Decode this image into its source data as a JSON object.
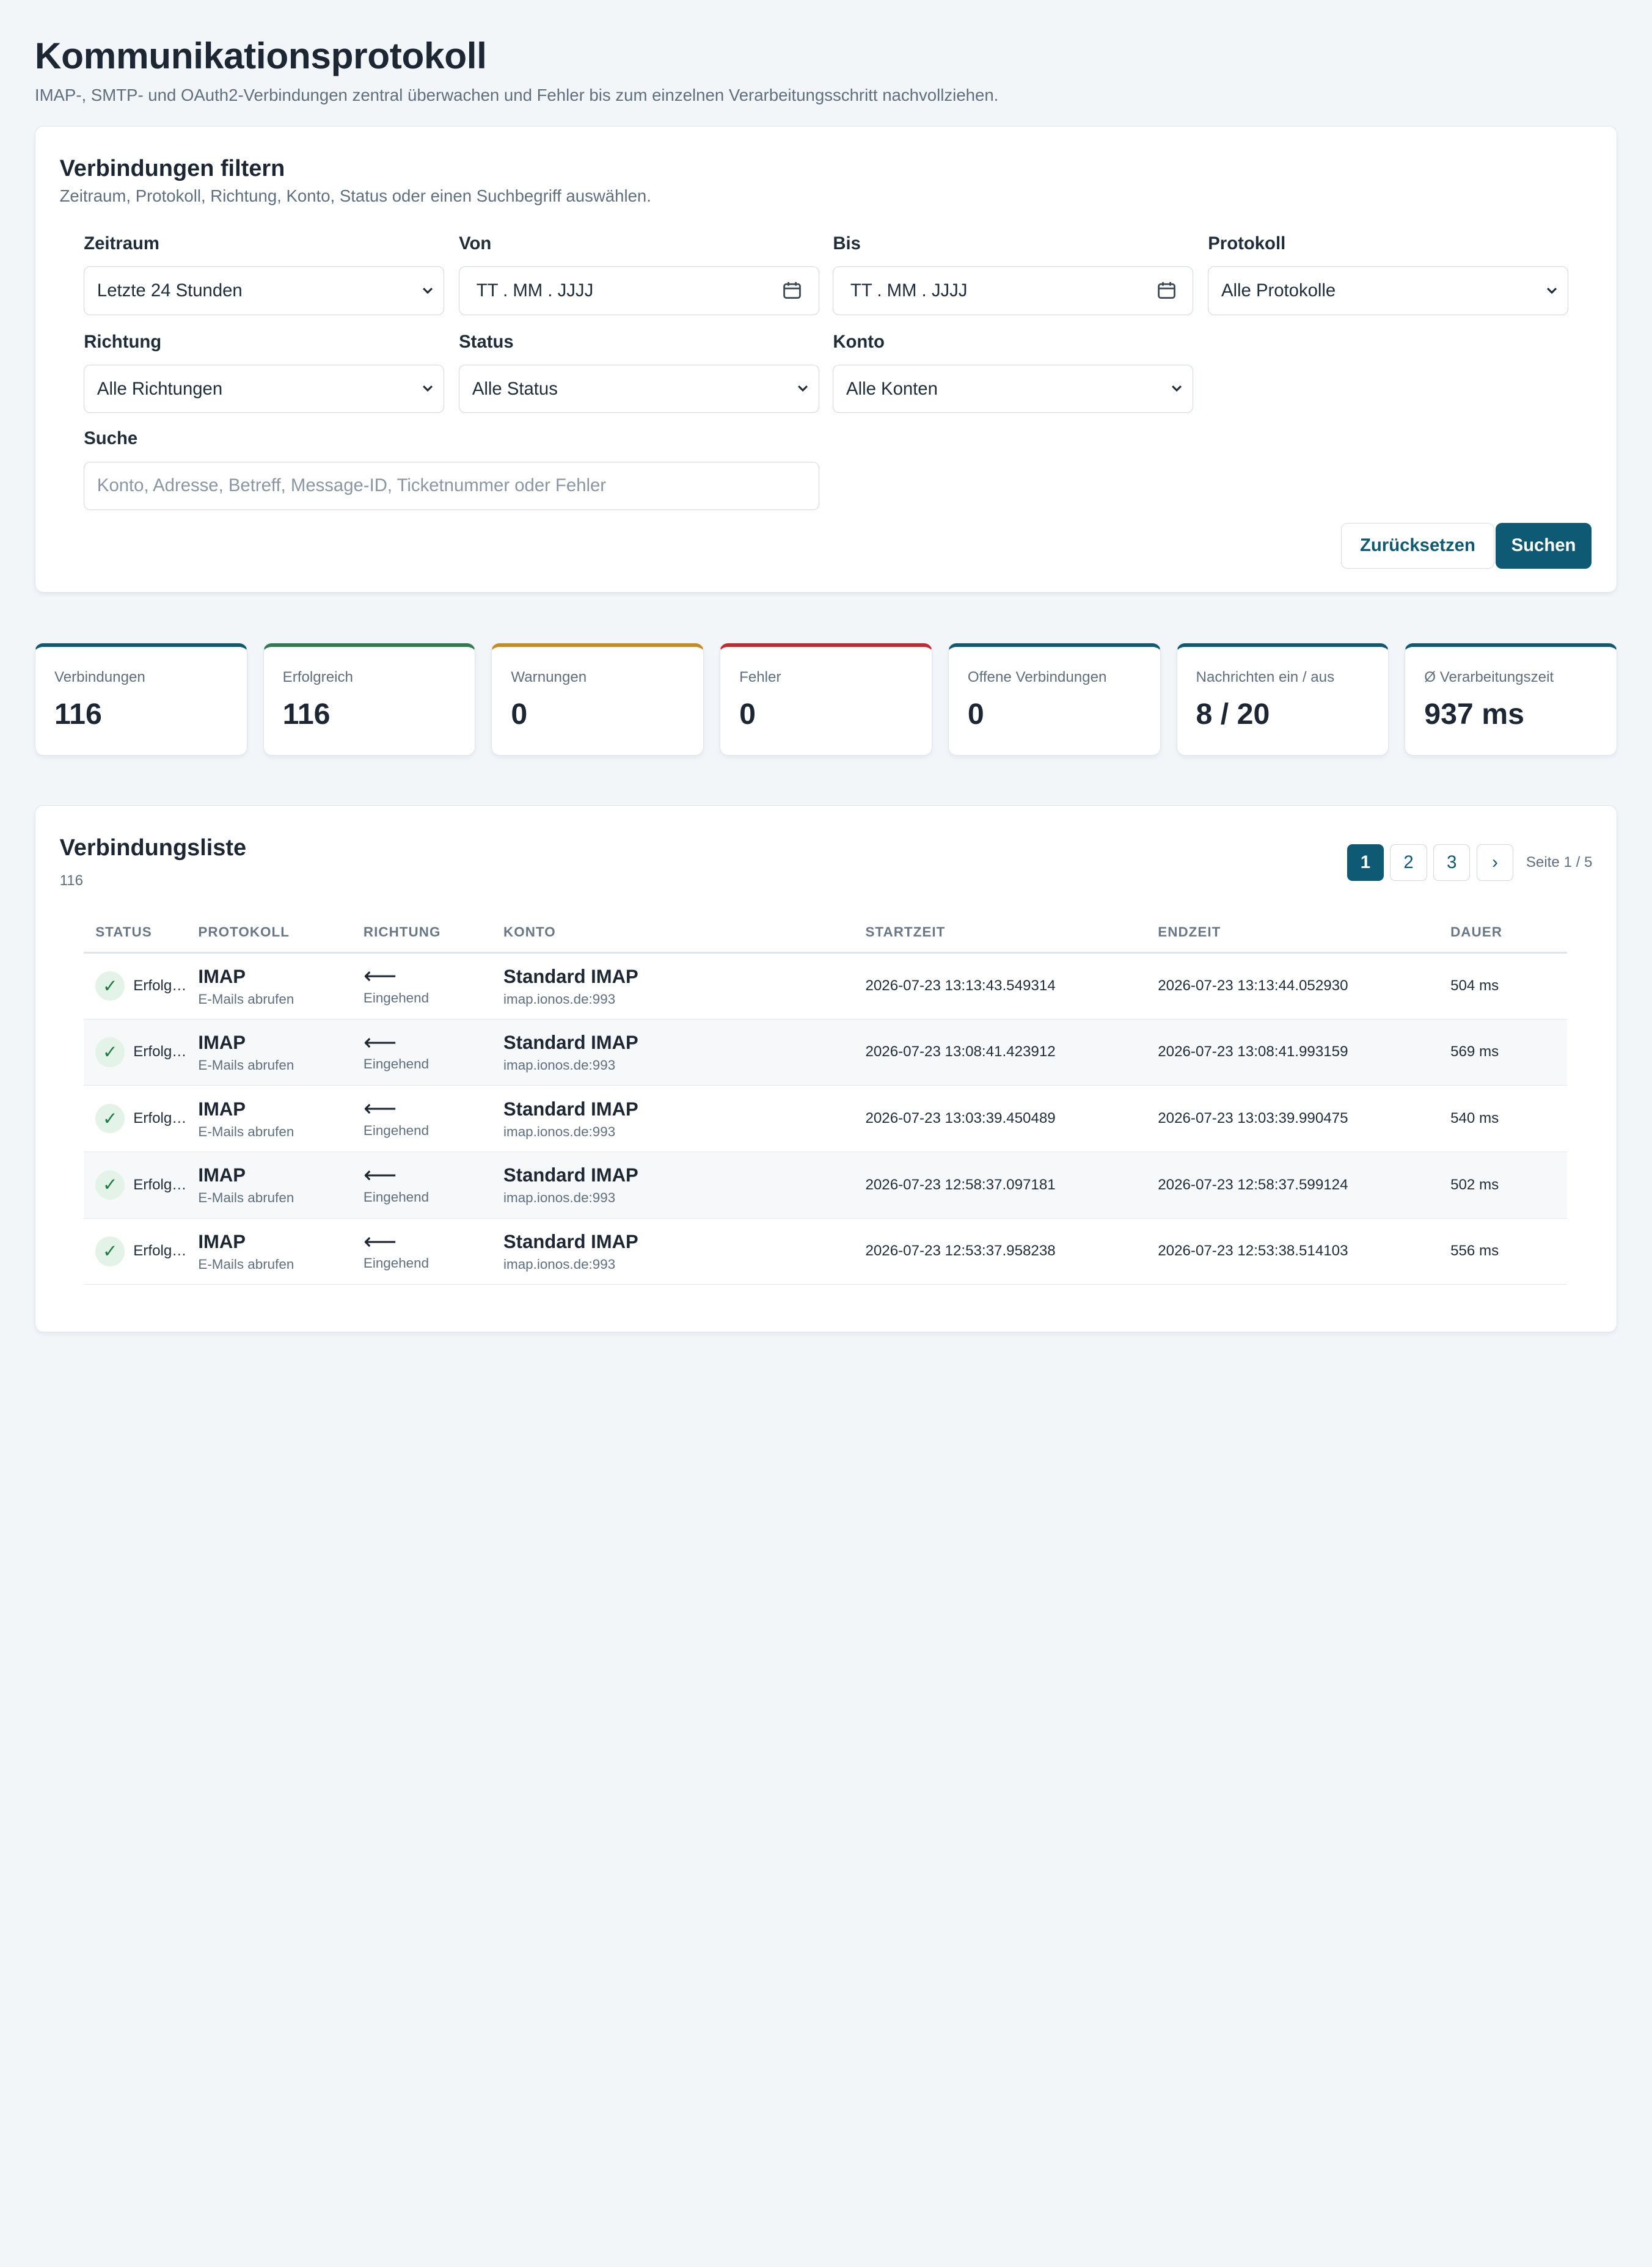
{
  "header": {
    "title": "Kommunikationsprotokoll",
    "subtitle": "IMAP-, SMTP- und OAuth2-Verbindungen zentral überwachen und Fehler bis zum einzelnen Verarbeitungsschritt nachvollziehen."
  },
  "filter": {
    "title": "Verbindungen filtern",
    "subtitle": "Zeitraum, Protokoll, Richtung, Konto, Status oder einen Suchbegriff auswählen.",
    "zeitraum": {
      "label": "Zeitraum",
      "value": "Letzte 24 Stunden"
    },
    "von": {
      "label": "Von",
      "placeholder": "TT . MM . JJJJ"
    },
    "bis": {
      "label": "Bis",
      "placeholder": "TT . MM . JJJJ"
    },
    "protokoll": {
      "label": "Protokoll",
      "value": "Alle Protokolle"
    },
    "richtung": {
      "label": "Richtung",
      "value": "Alle Richtungen"
    },
    "status": {
      "label": "Status",
      "value": "Alle Status"
    },
    "konto": {
      "label": "Konto",
      "value": "Alle Konten"
    },
    "suche": {
      "label": "Suche",
      "placeholder": "Konto, Adresse, Betreff, Message-ID, Ticketnummer oder Fehler"
    },
    "reset_label": "Zurücksetzen",
    "search_label": "Suchen"
  },
  "stats": [
    {
      "label": "Verbindungen",
      "value": "116",
      "color": "#0e5a74"
    },
    {
      "label": "Erfolgreich",
      "value": "116",
      "color": "#2e7d4f"
    },
    {
      "label": "Warnungen",
      "value": "0",
      "color": "#c98a1e"
    },
    {
      "label": "Fehler",
      "value": "0",
      "color": "#c6282e"
    },
    {
      "label": "Offene Verbindungen",
      "value": "0",
      "color": "#0e5a74"
    },
    {
      "label": "Nachrichten ein / aus",
      "value": "8 / 20",
      "color": "#0e5a74"
    },
    {
      "label": "Ø Verarbeitungszeit",
      "value": "937 ms",
      "color": "#0e5a74"
    }
  ],
  "list": {
    "title": "Verbindungsliste",
    "count": "116",
    "pager": {
      "pages": [
        "1",
        "2",
        "3"
      ],
      "next": "›",
      "info": "Seite 1 / 5"
    },
    "columns": [
      "STATUS",
      "PROTOKOLL",
      "RICHTUNG",
      "KONTO",
      "STARTZEIT",
      "ENDZEIT",
      "DAUER"
    ],
    "rows": [
      {
        "status": "Erfolg…",
        "protocol": "IMAP",
        "action": "E-Mails abrufen",
        "arrow": "⟵",
        "direction": "Eingehend",
        "account": "Standard IMAP",
        "host": "imap.ionos.de:993",
        "start": "2026-07-23 13:13:43.549314",
        "end": "2026-07-23 13:13:44.052930",
        "duration": "504 ms"
      },
      {
        "status": "Erfolg…",
        "protocol": "IMAP",
        "action": "E-Mails abrufen",
        "arrow": "⟵",
        "direction": "Eingehend",
        "account": "Standard IMAP",
        "host": "imap.ionos.de:993",
        "start": "2026-07-23 13:08:41.423912",
        "end": "2026-07-23 13:08:41.993159",
        "duration": "569 ms"
      },
      {
        "status": "Erfolg…",
        "protocol": "IMAP",
        "action": "E-Mails abrufen",
        "arrow": "⟵",
        "direction": "Eingehend",
        "account": "Standard IMAP",
        "host": "imap.ionos.de:993",
        "start": "2026-07-23 13:03:39.450489",
        "end": "2026-07-23 13:03:39.990475",
        "duration": "540 ms"
      },
      {
        "status": "Erfolg…",
        "protocol": "IMAP",
        "action": "E-Mails abrufen",
        "arrow": "⟵",
        "direction": "Eingehend",
        "account": "Standard IMAP",
        "host": "imap.ionos.de:993",
        "start": "2026-07-23 12:58:37.097181",
        "end": "2026-07-23 12:58:37.599124",
        "duration": "502 ms"
      },
      {
        "status": "Erfolg…",
        "protocol": "IMAP",
        "action": "E-Mails abrufen",
        "arrow": "⟵",
        "direction": "Eingehend",
        "account": "Standard IMAP",
        "host": "imap.ionos.de:993",
        "start": "2026-07-23 12:53:37.958238",
        "end": "2026-07-23 12:53:38.514103",
        "duration": "556 ms"
      }
    ]
  }
}
